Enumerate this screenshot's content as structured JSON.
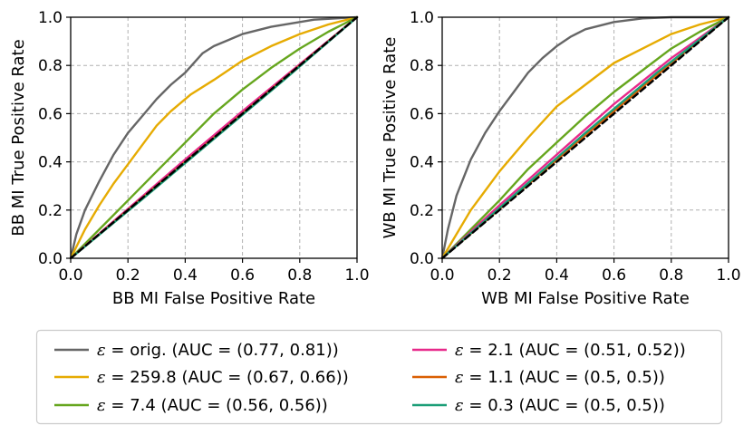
{
  "chart_data": [
    {
      "type": "line",
      "xlabel": "BB MI False Positive Rate",
      "ylabel": "BB MI True Positive Rate",
      "xlim": [
        0.0,
        1.0
      ],
      "ylim": [
        0.0,
        1.0
      ],
      "xticks": [
        "0.0",
        "0.2",
        "0.4",
        "0.6",
        "0.8",
        "1.0"
      ],
      "yticks": [
        "0.0",
        "0.2",
        "0.4",
        "0.6",
        "0.8",
        "1.0"
      ],
      "grid": true,
      "series": [
        {
          "name": "orig",
          "color": "#666666",
          "points": [
            [
              0,
              0
            ],
            [
              0.02,
              0.1
            ],
            [
              0.05,
              0.2
            ],
            [
              0.1,
              0.32
            ],
            [
              0.15,
              0.43
            ],
            [
              0.2,
              0.52
            ],
            [
              0.25,
              0.59
            ],
            [
              0.3,
              0.66
            ],
            [
              0.35,
              0.72
            ],
            [
              0.4,
              0.77
            ],
            [
              0.46,
              0.85
            ],
            [
              0.5,
              0.88
            ],
            [
              0.6,
              0.93
            ],
            [
              0.7,
              0.96
            ],
            [
              0.85,
              0.99
            ],
            [
              1,
              1
            ]
          ]
        },
        {
          "name": "259.8",
          "color": "#e6ab02",
          "points": [
            [
              0,
              0
            ],
            [
              0.05,
              0.12
            ],
            [
              0.1,
              0.22
            ],
            [
              0.15,
              0.31
            ],
            [
              0.2,
              0.39
            ],
            [
              0.3,
              0.55
            ],
            [
              0.35,
              0.61
            ],
            [
              0.42,
              0.68
            ],
            [
              0.5,
              0.74
            ],
            [
              0.6,
              0.82
            ],
            [
              0.7,
              0.88
            ],
            [
              0.8,
              0.93
            ],
            [
              0.9,
              0.97
            ],
            [
              1,
              1
            ]
          ]
        },
        {
          "name": "7.4",
          "color": "#66a61e",
          "points": [
            [
              0,
              0
            ],
            [
              0.1,
              0.12
            ],
            [
              0.2,
              0.24
            ],
            [
              0.3,
              0.36
            ],
            [
              0.4,
              0.48
            ],
            [
              0.5,
              0.6
            ],
            [
              0.6,
              0.7
            ],
            [
              0.7,
              0.79
            ],
            [
              0.8,
              0.87
            ],
            [
              0.9,
              0.94
            ],
            [
              1,
              1
            ]
          ]
        },
        {
          "name": "2.1",
          "color": "#e7298a",
          "points": [
            [
              0,
              0
            ],
            [
              0.2,
              0.205
            ],
            [
              0.4,
              0.41
            ],
            [
              0.6,
              0.61
            ],
            [
              0.8,
              0.805
            ],
            [
              1,
              1
            ]
          ]
        },
        {
          "name": "1.1",
          "color": "#d95f02",
          "points": [
            [
              0,
              0
            ],
            [
              0.25,
              0.25
            ],
            [
              0.5,
              0.5
            ],
            [
              0.75,
              0.75
            ],
            [
              1,
              1
            ]
          ]
        },
        {
          "name": "0.3",
          "color": "#1b9e77",
          "points": [
            [
              0,
              0
            ],
            [
              0.25,
              0.245
            ],
            [
              0.5,
              0.495
            ],
            [
              0.75,
              0.745
            ],
            [
              1,
              1
            ]
          ]
        },
        {
          "name": "chance",
          "color": "#000000",
          "dashed": true,
          "points": [
            [
              0,
              0
            ],
            [
              1,
              1
            ]
          ]
        }
      ]
    },
    {
      "type": "line",
      "xlabel": "WB MI False Positive Rate",
      "ylabel": "WB MI True Positive Rate",
      "xlim": [
        0.0,
        1.0
      ],
      "ylim": [
        0.0,
        1.0
      ],
      "xticks": [
        "0.0",
        "0.2",
        "0.4",
        "0.6",
        "0.8",
        "1.0"
      ],
      "yticks": [
        "0.0",
        "0.2",
        "0.4",
        "0.6",
        "0.8",
        "1.0"
      ],
      "grid": true,
      "series": [
        {
          "name": "orig",
          "color": "#666666",
          "points": [
            [
              0,
              0
            ],
            [
              0.02,
              0.12
            ],
            [
              0.05,
              0.26
            ],
            [
              0.1,
              0.41
            ],
            [
              0.15,
              0.52
            ],
            [
              0.2,
              0.61
            ],
            [
              0.25,
              0.69
            ],
            [
              0.3,
              0.77
            ],
            [
              0.35,
              0.83
            ],
            [
              0.4,
              0.88
            ],
            [
              0.45,
              0.92
            ],
            [
              0.5,
              0.95
            ],
            [
              0.6,
              0.98
            ],
            [
              0.7,
              0.995
            ],
            [
              0.8,
              1
            ],
            [
              1,
              1
            ]
          ]
        },
        {
          "name": "259.8",
          "color": "#e6ab02",
          "points": [
            [
              0,
              0
            ],
            [
              0.05,
              0.1
            ],
            [
              0.1,
              0.2
            ],
            [
              0.15,
              0.28
            ],
            [
              0.2,
              0.36
            ],
            [
              0.3,
              0.5
            ],
            [
              0.4,
              0.63
            ],
            [
              0.5,
              0.72
            ],
            [
              0.6,
              0.81
            ],
            [
              0.7,
              0.87
            ],
            [
              0.8,
              0.93
            ],
            [
              0.9,
              0.97
            ],
            [
              1,
              1
            ]
          ]
        },
        {
          "name": "7.4",
          "color": "#66a61e",
          "points": [
            [
              0,
              0
            ],
            [
              0.1,
              0.12
            ],
            [
              0.2,
              0.24
            ],
            [
              0.3,
              0.37
            ],
            [
              0.4,
              0.48
            ],
            [
              0.5,
              0.59
            ],
            [
              0.6,
              0.69
            ],
            [
              0.7,
              0.78
            ],
            [
              0.8,
              0.87
            ],
            [
              0.9,
              0.94
            ],
            [
              1,
              1
            ]
          ]
        },
        {
          "name": "2.1",
          "color": "#e7298a",
          "points": [
            [
              0,
              0
            ],
            [
              0.2,
              0.22
            ],
            [
              0.4,
              0.43
            ],
            [
              0.6,
              0.64
            ],
            [
              0.8,
              0.83
            ],
            [
              1,
              1
            ]
          ]
        },
        {
          "name": "1.1",
          "color": "#d95f02",
          "points": [
            [
              0,
              0
            ],
            [
              0.25,
              0.255
            ],
            [
              0.5,
              0.51
            ],
            [
              0.75,
              0.76
            ],
            [
              1,
              1
            ]
          ]
        },
        {
          "name": "0.3",
          "color": "#1b9e77",
          "points": [
            [
              0,
              0
            ],
            [
              0.25,
              0.26
            ],
            [
              0.5,
              0.52
            ],
            [
              0.75,
              0.77
            ],
            [
              1,
              1
            ]
          ]
        },
        {
          "name": "chance",
          "color": "#000000",
          "dashed": true,
          "points": [
            [
              0,
              0
            ],
            [
              1,
              1
            ]
          ]
        }
      ]
    }
  ],
  "legend": {
    "placement": "bottom-center",
    "symbol": "ε",
    "items": [
      {
        "series": "orig",
        "color": "#666666",
        "label": " = orig. (AUC = (0.77, 0.81))"
      },
      {
        "series": "259.8",
        "color": "#e6ab02",
        "label": " = 259.8 (AUC = (0.67, 0.66))"
      },
      {
        "series": "7.4",
        "color": "#66a61e",
        "label": " = 7.4 (AUC = (0.56, 0.56))"
      },
      {
        "series": "2.1",
        "color": "#e7298a",
        "label": " = 2.1 (AUC = (0.51, 0.52))"
      },
      {
        "series": "1.1",
        "color": "#d95f02",
        "label": " = 1.1 (AUC = (0.5, 0.5))"
      },
      {
        "series": "0.3",
        "color": "#1b9e77",
        "label": " = 0.3 (AUC = (0.5, 0.5))"
      }
    ]
  }
}
